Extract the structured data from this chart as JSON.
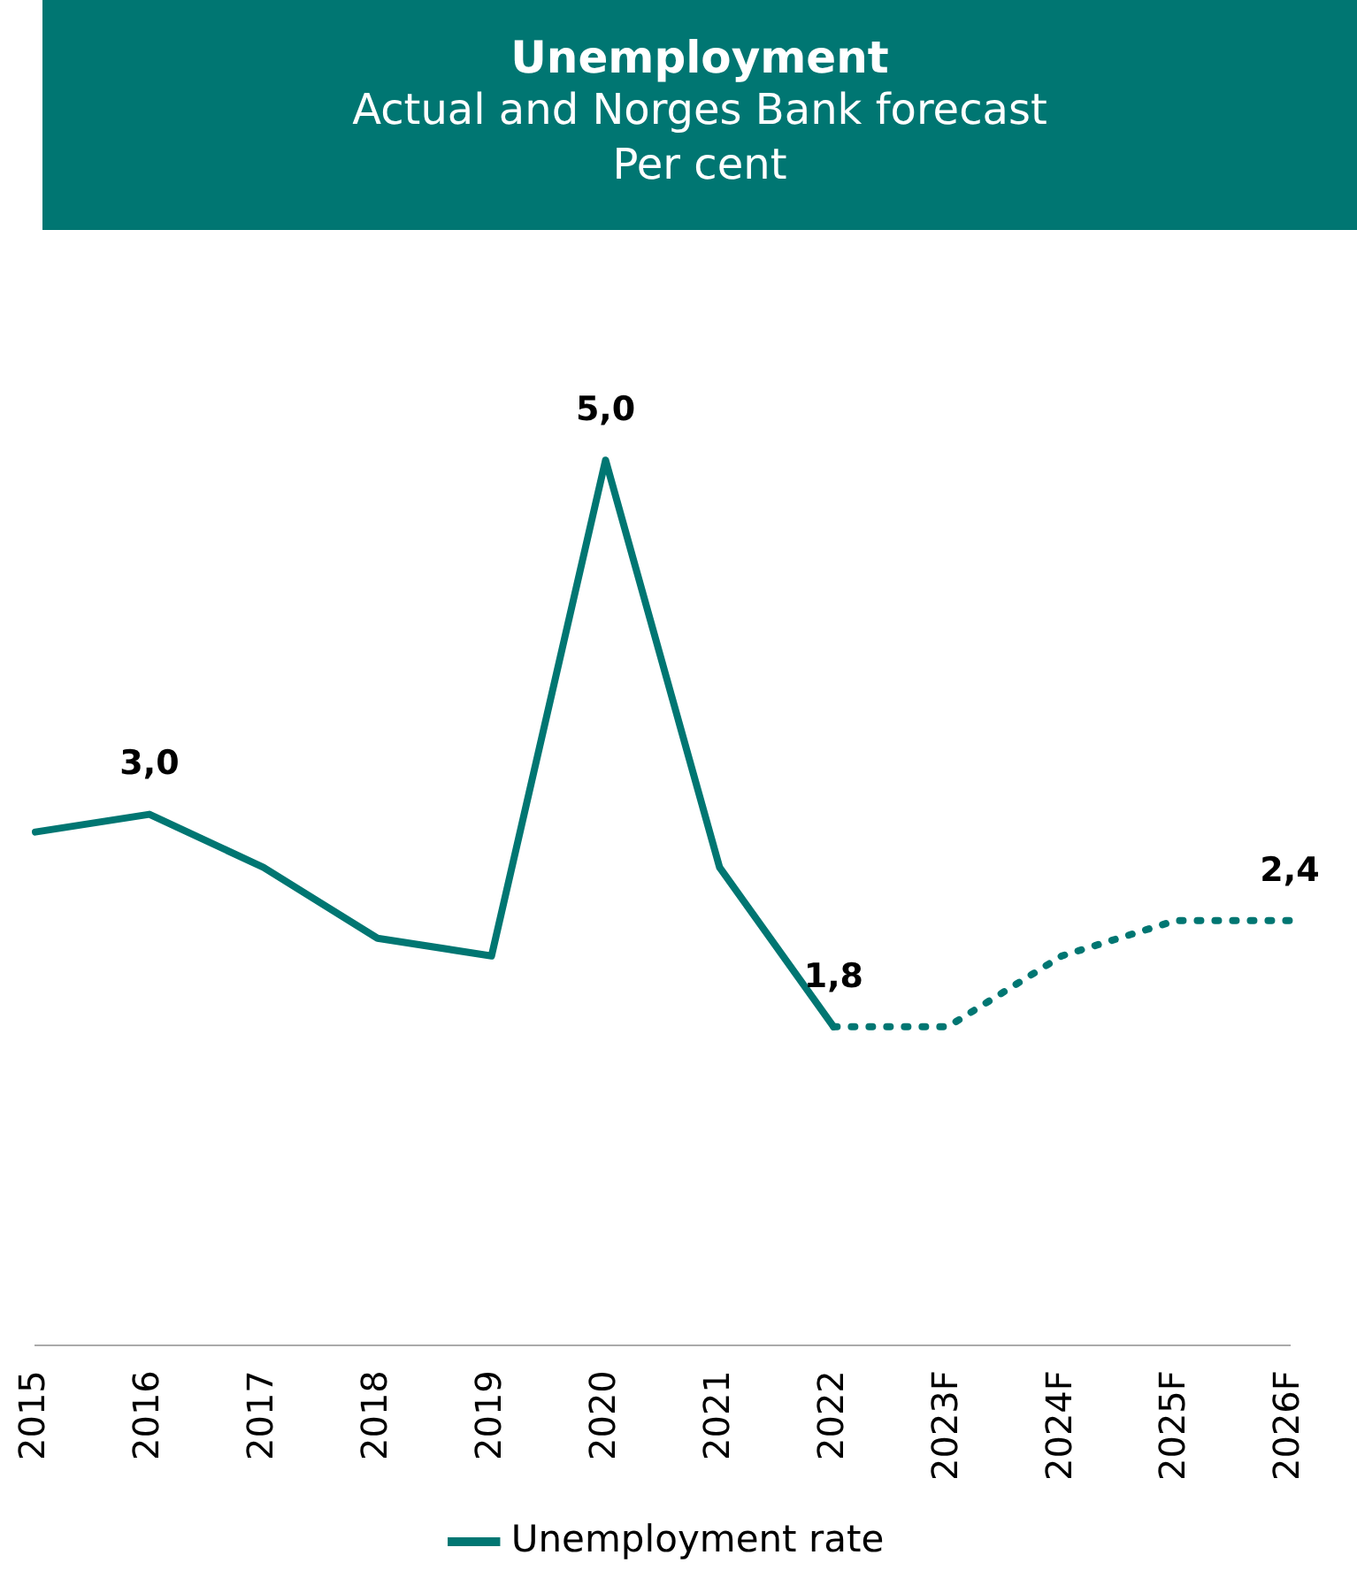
{
  "chart_data": {
    "type": "line",
    "title": "Unemployment",
    "subtitle": "Actual and Norges Bank forecast\nPer cent",
    "categories": [
      "2015",
      "2016",
      "2017",
      "2018",
      "2019",
      "2020",
      "2021",
      "2022",
      "2023F",
      "2024F",
      "2025F",
      "2026F"
    ],
    "series": [
      {
        "name": "Unemployment rate",
        "color": "#007672",
        "line_style": "solid",
        "values": [
          2.9,
          3.0,
          2.7,
          2.3,
          2.2,
          5.0,
          2.7,
          1.8,
          null,
          null,
          null,
          null
        ],
        "value_labels": [
          null,
          "3,0",
          null,
          null,
          null,
          "5,0",
          null,
          "1,8",
          null,
          null,
          null,
          null
        ]
      },
      {
        "color": "#007672",
        "line_style": "dotted",
        "values": [
          null,
          null,
          null,
          null,
          null,
          null,
          null,
          1.8,
          1.8,
          2.2,
          2.4,
          2.4
        ],
        "value_labels": [
          null,
          null,
          null,
          null,
          null,
          null,
          null,
          null,
          null,
          null,
          null,
          "2,4"
        ]
      }
    ],
    "tick_labels": "x",
    "grid": false,
    "legend": "bottom",
    "marker": "none"
  }
}
